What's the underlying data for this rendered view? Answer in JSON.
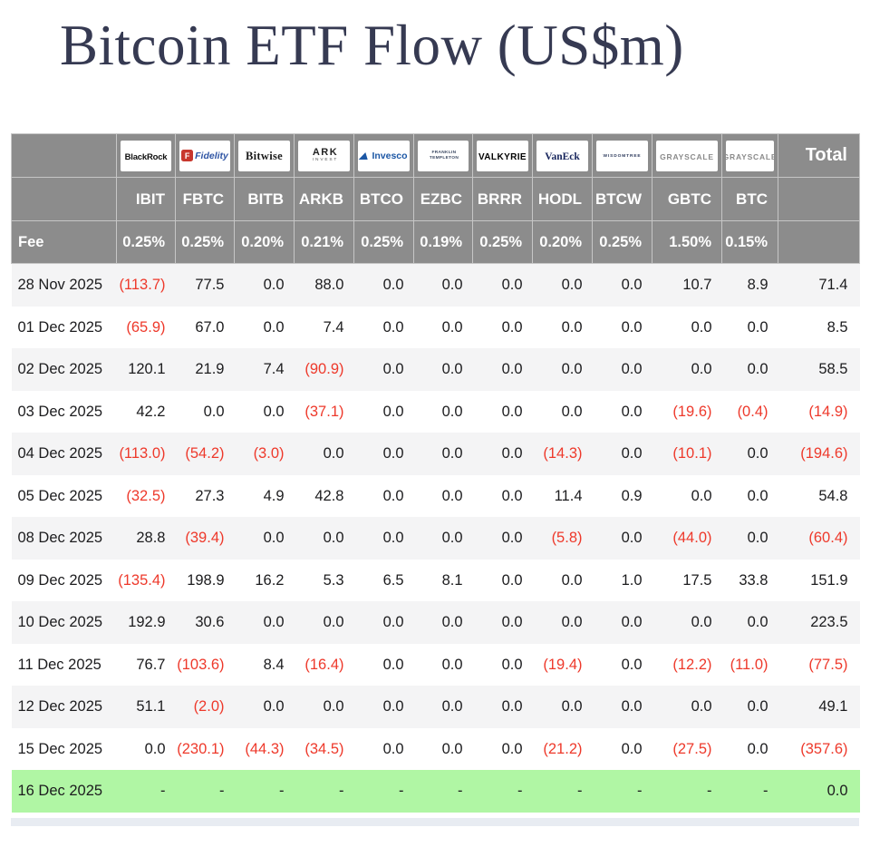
{
  "page": {
    "title": "Bitcoin ETF Flow (US$m)"
  },
  "colors": {
    "title_text": "#363a52",
    "header_gray": "#8c8c8c",
    "negative_red": "#ee392b",
    "highlight_green": "#b0f6a4",
    "alt_row_gray": "#f4f4f5"
  },
  "table": {
    "total_label": "Total",
    "fee_label": "Fee",
    "issuers": [
      {
        "ticker": "IBIT",
        "fee": "0.25%",
        "logo": {
          "brand": "blackrock",
          "text": "BlackRock"
        }
      },
      {
        "ticker": "FBTC",
        "fee": "0.25%",
        "logo": {
          "brand": "fidelity",
          "icon": "F",
          "text": "Fidelity"
        }
      },
      {
        "ticker": "BITB",
        "fee": "0.20%",
        "logo": {
          "brand": "bitwise",
          "text": "Bitwise"
        }
      },
      {
        "ticker": "ARKB",
        "fee": "0.21%",
        "logo": {
          "brand": "ark",
          "text": "ARK",
          "subtext": "INVEST"
        }
      },
      {
        "ticker": "BTCO",
        "fee": "0.25%",
        "logo": {
          "brand": "invesco",
          "text": "Invesco"
        }
      },
      {
        "ticker": "EZBC",
        "fee": "0.19%",
        "logo": {
          "brand": "franklin",
          "text": "FRANKLIN",
          "subtext": "TEMPLETON"
        }
      },
      {
        "ticker": "BRRR",
        "fee": "0.25%",
        "logo": {
          "brand": "valkyrie",
          "text": "VALKYRIE"
        }
      },
      {
        "ticker": "HODL",
        "fee": "0.20%",
        "logo": {
          "brand": "vaneck",
          "text": "VanEck"
        }
      },
      {
        "ticker": "BTCW",
        "fee": "0.25%",
        "logo": {
          "brand": "wisdomtree",
          "text": "WISDOMTREE"
        }
      },
      {
        "ticker": "GBTC",
        "fee": "1.50%",
        "logo": {
          "brand": "grayscale",
          "text": "GRAYSCALE"
        }
      },
      {
        "ticker": "BTC",
        "fee": "0.15%",
        "logo": {
          "brand": "grayscale",
          "text": "GRAYSCALE"
        }
      }
    ],
    "rows": [
      {
        "date": "28 Nov 2025",
        "values": [
          "(113.7)",
          "77.5",
          "0.0",
          "88.0",
          "0.0",
          "0.0",
          "0.0",
          "0.0",
          "0.0",
          "10.7",
          "8.9"
        ],
        "total": "71.4",
        "highlight": false
      },
      {
        "date": "01 Dec 2025",
        "values": [
          "(65.9)",
          "67.0",
          "0.0",
          "7.4",
          "0.0",
          "0.0",
          "0.0",
          "0.0",
          "0.0",
          "0.0",
          "0.0"
        ],
        "total": "8.5",
        "highlight": false
      },
      {
        "date": "02 Dec 2025",
        "values": [
          "120.1",
          "21.9",
          "7.4",
          "(90.9)",
          "0.0",
          "0.0",
          "0.0",
          "0.0",
          "0.0",
          "0.0",
          "0.0"
        ],
        "total": "58.5",
        "highlight": false
      },
      {
        "date": "03 Dec 2025",
        "values": [
          "42.2",
          "0.0",
          "0.0",
          "(37.1)",
          "0.0",
          "0.0",
          "0.0",
          "0.0",
          "0.0",
          "(19.6)",
          "(0.4)"
        ],
        "total": "(14.9)",
        "highlight": false
      },
      {
        "date": "04 Dec 2025",
        "values": [
          "(113.0)",
          "(54.2)",
          "(3.0)",
          "0.0",
          "0.0",
          "0.0",
          "0.0",
          "(14.3)",
          "0.0",
          "(10.1)",
          "0.0"
        ],
        "total": "(194.6)",
        "highlight": false
      },
      {
        "date": "05 Dec 2025",
        "values": [
          "(32.5)",
          "27.3",
          "4.9",
          "42.8",
          "0.0",
          "0.0",
          "0.0",
          "11.4",
          "0.9",
          "0.0",
          "0.0"
        ],
        "total": "54.8",
        "highlight": false
      },
      {
        "date": "08 Dec 2025",
        "values": [
          "28.8",
          "(39.4)",
          "0.0",
          "0.0",
          "0.0",
          "0.0",
          "0.0",
          "(5.8)",
          "0.0",
          "(44.0)",
          "0.0"
        ],
        "total": "(60.4)",
        "highlight": false
      },
      {
        "date": "09 Dec 2025",
        "values": [
          "(135.4)",
          "198.9",
          "16.2",
          "5.3",
          "6.5",
          "8.1",
          "0.0",
          "0.0",
          "1.0",
          "17.5",
          "33.8"
        ],
        "total": "151.9",
        "highlight": false
      },
      {
        "date": "10 Dec 2025",
        "values": [
          "192.9",
          "30.6",
          "0.0",
          "0.0",
          "0.0",
          "0.0",
          "0.0",
          "0.0",
          "0.0",
          "0.0",
          "0.0"
        ],
        "total": "223.5",
        "highlight": false
      },
      {
        "date": "11 Dec 2025",
        "values": [
          "76.7",
          "(103.6)",
          "8.4",
          "(16.4)",
          "0.0",
          "0.0",
          "0.0",
          "(19.4)",
          "0.0",
          "(12.2)",
          "(11.0)"
        ],
        "total": "(77.5)",
        "highlight": false
      },
      {
        "date": "12 Dec 2025",
        "values": [
          "51.1",
          "(2.0)",
          "0.0",
          "0.0",
          "0.0",
          "0.0",
          "0.0",
          "0.0",
          "0.0",
          "0.0",
          "0.0"
        ],
        "total": "49.1",
        "highlight": false
      },
      {
        "date": "15 Dec 2025",
        "values": [
          "0.0",
          "(230.1)",
          "(44.3)",
          "(34.5)",
          "0.0",
          "0.0",
          "0.0",
          "(21.2)",
          "0.0",
          "(27.5)",
          "0.0"
        ],
        "total": "(357.6)",
        "highlight": false
      },
      {
        "date": "16 Dec 2025",
        "values": [
          "-",
          "-",
          "-",
          "-",
          "-",
          "-",
          "-",
          "-",
          "-",
          "-",
          "-"
        ],
        "total": "0.0",
        "highlight": true
      }
    ]
  }
}
